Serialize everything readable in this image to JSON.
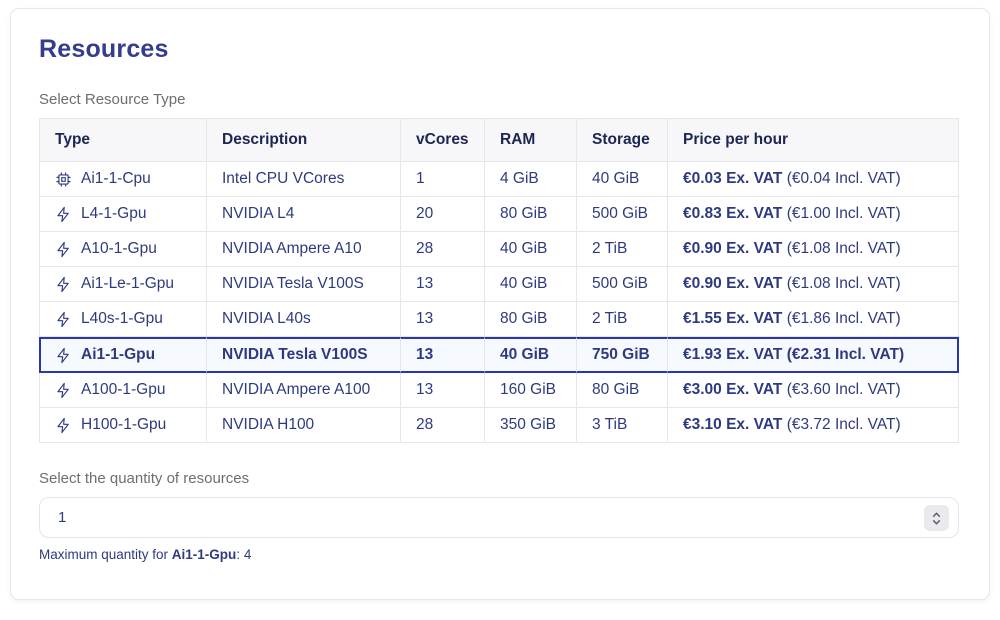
{
  "card": {
    "title": "Resources",
    "table_label": "Select Resource Type",
    "quantity_label": "Select the quantity of resources",
    "quantity_value": "1",
    "max_note": {
      "prefix": "Maximum quantity for ",
      "resource": "Ai1-1-Gpu",
      "suffix": ": 4"
    }
  },
  "table": {
    "columns": [
      "Type",
      "Description",
      "vCores",
      "RAM",
      "Storage",
      "Price per hour"
    ],
    "rows": [
      {
        "icon": "cpu-chip-icon",
        "type": "Ai1-1-Gpu",
        "selected": true,
        "description": "NVIDIA Tesla V100S",
        "vcores": "13",
        "ram": "40 GiB",
        "storage": "750 GiB",
        "price_ex": "€1.93 Ex. VAT",
        "price_incl": "(€2.31 Incl. VAT)"
      }
    ]
  },
  "rows": [
    {
      "icon": "cpu-chip-icon",
      "type": "Ai1-1-Cpu",
      "selected": false,
      "description": "Intel CPU VCores",
      "vcores": "1",
      "ram": "4 GiB",
      "storage": "40 GiB",
      "price_ex": "€0.03 Ex. VAT",
      "price_incl": "(€0.04 Incl. VAT)"
    },
    {
      "icon": "lightning-bolt-icon",
      "type": "L4-1-Gpu",
      "selected": false,
      "description": "NVIDIA L4",
      "vcores": "20",
      "ram": "80 GiB",
      "storage": "500 GiB",
      "price_ex": "€0.83 Ex. VAT",
      "price_incl": "(€1.00 Incl. VAT)"
    },
    {
      "icon": "lightning-bolt-icon",
      "type": "A10-1-Gpu",
      "selected": false,
      "description": "NVIDIA Ampere A10",
      "vcores": "28",
      "ram": "40 GiB",
      "storage": "2 TiB",
      "price_ex": "€0.90 Ex. VAT",
      "price_incl": "(€1.08 Incl. VAT)"
    },
    {
      "icon": "lightning-bolt-icon",
      "type": "Ai1-Le-1-Gpu",
      "selected": false,
      "description": "NVIDIA Tesla V100S",
      "vcores": "13",
      "ram": "40 GiB",
      "storage": "500 GiB",
      "price_ex": "€0.90 Ex. VAT",
      "price_incl": "(€1.08 Incl. VAT)"
    },
    {
      "icon": "lightning-bolt-icon",
      "type": "L40s-1-Gpu",
      "selected": false,
      "description": "NVIDIA L40s",
      "vcores": "13",
      "ram": "80 GiB",
      "storage": "2 TiB",
      "price_ex": "€1.55 Ex. VAT",
      "price_incl": "(€1.86 Incl. VAT)"
    },
    {
      "icon": "lightning-bolt-icon",
      "type": "Ai1-1-Gpu",
      "selected": true,
      "description": "NVIDIA Tesla V100S",
      "vcores": "13",
      "ram": "40 GiB",
      "storage": "750 GiB",
      "price_ex": "€1.93 Ex. VAT",
      "price_incl": "(€2.31 Incl. VAT)"
    },
    {
      "icon": "lightning-bolt-icon",
      "type": "A100-1-Gpu",
      "selected": false,
      "description": "NVIDIA Ampere A100",
      "vcores": "13",
      "ram": "160 GiB",
      "storage": "80 GiB",
      "price_ex": "€3.00 Ex. VAT",
      "price_incl": "(€3.60 Incl. VAT)"
    },
    {
      "icon": "lightning-bolt-icon",
      "type": "H100-1-Gpu",
      "selected": false,
      "description": "NVIDIA H100",
      "vcores": "28",
      "ram": "350 GiB",
      "storage": "3 TiB",
      "price_ex": "€3.10 Ex. VAT",
      "price_incl": "(€3.72 Incl. VAT)"
    }
  ],
  "colors": {
    "title": "#333c8d",
    "header_text": "#1c2553",
    "body_text": "#2e3a7f",
    "muted_label": "#6e6e6e",
    "table_border": "#e7e7ea",
    "header_bg": "#f7f7f9",
    "selected_border": "#2936ae",
    "selected_bg": "#f6f9fd"
  }
}
